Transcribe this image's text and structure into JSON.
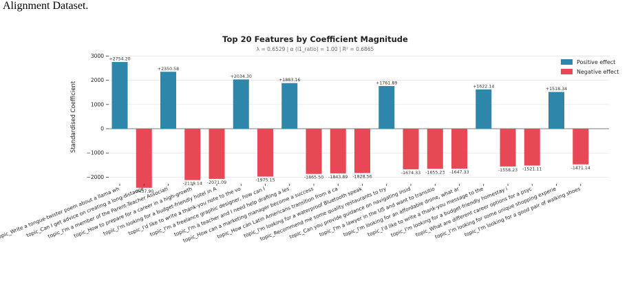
{
  "caption": "Alignment Dataset.",
  "chart_data": {
    "type": "bar",
    "title": "Top 20 Features by Coefficient Magnitude",
    "subtitle": "λ = 0.6529  |  α (l1_ratio) = 1.00  |  R² = 0.6865",
    "xlabel": "",
    "ylabel": "Standardised Coefficient",
    "ylim": [
      -2600,
      3150
    ],
    "yticks": [
      -2000,
      -1000,
      0,
      1000,
      2000,
      3000
    ],
    "grid": "horizontal",
    "legend_position": "top-right",
    "legend": [
      {
        "label": "Positive effect",
        "color": "#2e86ab"
      },
      {
        "label": "Negative effect",
        "color": "#e84855"
      }
    ],
    "categories": [
      "topic_Write a tongue-twister poem about a llama wh",
      "topic_Can I get advice on creating a long-distance",
      "topic_I'm a member of the Parent-Teacher Associati",
      "topic_How to prepare for a career in a high-growth",
      "topic_I'm looking for a budget-friendly hotel in A",
      "topic_I'd like to write a thank-you note to the vo",
      "topic_I'm a freelance graphic designer, how can I",
      "topic_I'm a teacher and I need help drafting a les",
      "topic_How can a marketing manager become a success",
      "topic_How can Latin Americans transition from a ca",
      "topic_I'm looking for a waterproof Bluetooth speak",
      "topic_Recommend me some quality restaurants to try",
      "topic_Can you provide guidance on navigating insid",
      "topic_I'm a lawyer in the US and want to transitio",
      "topic_I'm looking for an affordable drone, what ar",
      "topic_I'd like to write a thank-you message to the",
      "topic_I'm looking for a budget-friendly homestay i",
      "topic_What are different career options for a psyc",
      "topic_I'm looking for some unique shopping experie",
      "topic_I'm looking for a good pair of walking shoes"
    ],
    "values": [
      2754.2,
      -2437.9,
      2350.58,
      -2119.14,
      -2071.09,
      2034.3,
      -1975.15,
      1883.16,
      -1865.5,
      -1843.89,
      -1828.56,
      1761.89,
      -1674.33,
      -1655.23,
      -1647.33,
      1622.14,
      -1558.23,
      -1521.11,
      1518.34,
      -1471.14
    ],
    "value_labels": [
      "+2754.20",
      "-2437.90",
      "+2350.58",
      "-2119.14",
      "-2071.09",
      "+2034.30",
      "-1975.15",
      "+1883.16",
      "-1865.50",
      "-1843.89",
      "-1828.56",
      "+1761.89",
      "-1674.33",
      "-1655.23",
      "-1647.33",
      "+1622.14",
      "-1558.23",
      "-1521.11",
      "+1518.34",
      "-1471.14"
    ],
    "colors": {
      "positive": "#2e86ab",
      "negative": "#e84855",
      "grid": "#dddddd",
      "axis": "#333333"
    }
  }
}
